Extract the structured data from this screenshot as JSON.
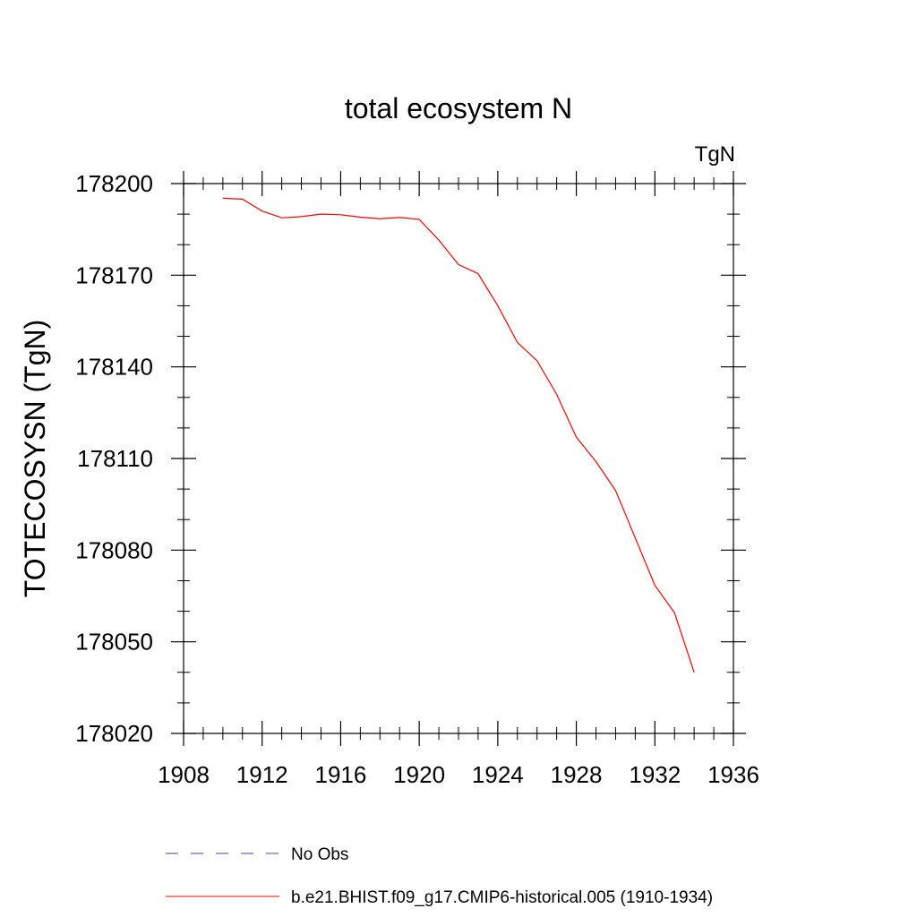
{
  "chart_data": {
    "type": "line",
    "title": "total ecosystem N",
    "units_label": "TgN",
    "xlabel": "",
    "ylabel": "TOTECOSYSN  (TgN)",
    "xlim": [
      1908,
      1936
    ],
    "ylim": [
      178020,
      178200
    ],
    "x_ticks": [
      1908,
      1912,
      1916,
      1920,
      1924,
      1928,
      1932,
      1936
    ],
    "y_ticks": [
      178020,
      178050,
      178080,
      178110,
      178140,
      178170,
      178200
    ],
    "grid": false,
    "legend_position": "bottom",
    "series": [
      {
        "name": "No Obs",
        "color": "#4b3fa8",
        "dash": "dashed",
        "x": [],
        "y": []
      },
      {
        "name": "b.e21.BHIST.f09_g17.CMIP6-historical.005 (1910-1934)",
        "color": "#ff0000",
        "dash": "solid",
        "x": [
          1910,
          1911,
          1912,
          1913,
          1914,
          1915,
          1916,
          1917,
          1918,
          1919,
          1920,
          1921,
          1922,
          1923,
          1924,
          1925,
          1926,
          1927,
          1928,
          1929,
          1930,
          1931,
          1932,
          1933,
          1934
        ],
        "y": [
          178195.2,
          178194.9,
          178191.0,
          178188.8,
          178189.2,
          178190.0,
          178189.8,
          178189.0,
          178188.5,
          178188.9,
          178188.3,
          178181.5,
          178173.5,
          178170.5,
          178160.0,
          178148.0,
          178142.0,
          178131.0,
          178117.0,
          178109.0,
          178099.5,
          178084.0,
          178068.5,
          178059.5,
          178040.0
        ]
      }
    ]
  }
}
